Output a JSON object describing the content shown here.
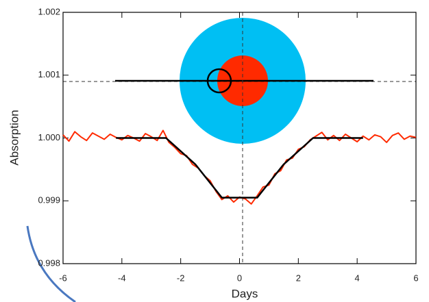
{
  "chart_data": {
    "type": "line",
    "xlabel": "Days",
    "ylabel": "Absorption",
    "xlim": [
      -6,
      6
    ],
    "xticks": [
      -6,
      -4,
      -2,
      0,
      2,
      4,
      6
    ],
    "ylim": [
      0.998,
      1.002
    ],
    "yticks": [
      0.998,
      0.999,
      {
        "value": 1,
        "label": "1.000"
      },
      1.001,
      1.002
    ],
    "series": [
      {
        "color": "#ff2a00",
        "x": [
          -6.0,
          -5.8,
          -5.6,
          -5.4,
          -5.2,
          -5.0,
          -4.8,
          -4.6,
          -4.4,
          -4.2,
          -4.0,
          -3.8,
          -3.6,
          -3.4,
          -3.2,
          -3.0,
          -2.8,
          -2.6,
          -2.4,
          -2.2,
          -2.0,
          -1.8,
          -1.6,
          -1.4,
          -1.2,
          -1.0,
          -0.8,
          -0.6,
          -0.4,
          -0.2,
          0.0,
          0.2,
          0.4,
          0.6,
          0.8,
          1.0,
          1.2,
          1.4,
          1.6,
          1.8,
          2.0,
          2.2,
          2.4,
          2.6,
          2.8,
          3.0,
          3.2,
          3.4,
          3.6,
          3.8,
          4.0,
          4.2,
          4.4,
          4.6,
          4.8,
          5.0,
          5.2,
          5.4,
          5.6,
          5.8,
          6.0
        ],
        "values": [
          1.00005,
          0.99995,
          1.0001,
          1.00002,
          0.99996,
          1.00008,
          1.00003,
          0.99998,
          1.00006,
          1.00001,
          0.99997,
          1.00004,
          1.0,
          0.99995,
          1.00007,
          1.00002,
          0.99996,
          1.00012,
          0.99993,
          0.99985,
          0.99975,
          0.99972,
          0.99958,
          0.99952,
          0.9994,
          0.99932,
          0.99915,
          0.99902,
          0.99908,
          0.99898,
          0.99906,
          0.99903,
          0.99895,
          0.99908,
          0.99922,
          0.99925,
          0.99943,
          0.99948,
          0.99965,
          0.99968,
          0.99982,
          0.99986,
          0.99997,
          1.00003,
          1.00009,
          0.99997,
          1.00004,
          0.99996,
          1.00006,
          1.0,
          0.99994,
          1.00003,
          0.99997,
          1.00005,
          1.00002,
          0.99993,
          1.00004,
          1.00008,
          0.99998,
          1.00003,
          1.00001
        ]
      },
      {
        "color": "#000000",
        "x": [
          -4.2,
          -2.5,
          -1.5,
          -0.6,
          0.6,
          1.5,
          2.5,
          4.2
        ],
        "values": [
          1.0,
          1.0,
          0.99958,
          0.99905,
          0.99905,
          0.99958,
          1.0,
          1.0
        ]
      }
    ]
  }
}
